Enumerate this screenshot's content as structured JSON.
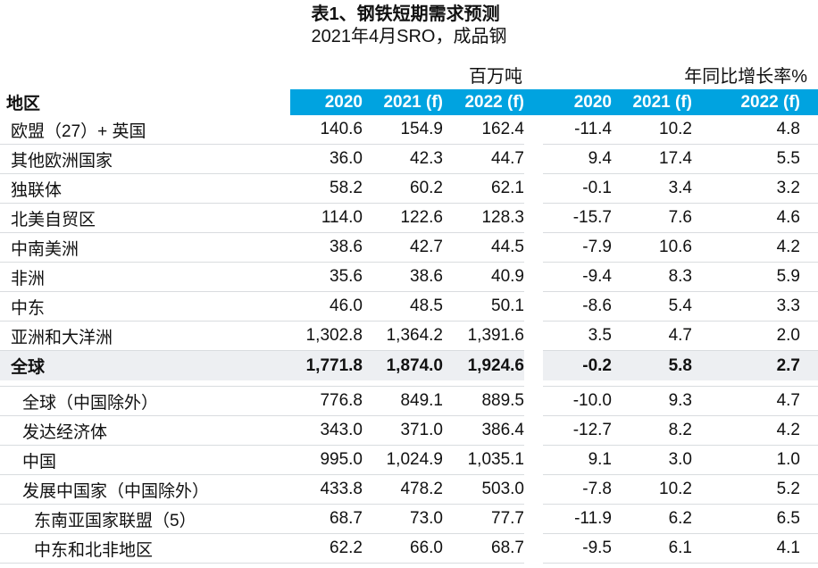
{
  "chart_data": {
    "type": "table",
    "title": "表1、钢铁短期需求预测",
    "subtitle": "2021年4月SRO，成品钢",
    "region_header": "地区",
    "unit_group_labels": [
      "百万吨",
      "年同比增长率%"
    ],
    "column_headers": [
      "2020",
      "2021 (f)",
      "2022 (f)",
      "2020",
      "2021 (f)",
      "2022 (f)"
    ],
    "rows": [
      {
        "region": "欧盟（27）+ 英国",
        "indent": 0,
        "bold": false,
        "highlight": false,
        "spacer_after": false,
        "million_tonnes": [
          "140.6",
          "154.9",
          "162.4"
        ],
        "yoy_growth_pct": [
          "-11.4",
          "10.2",
          "4.8"
        ]
      },
      {
        "region": "其他欧洲国家",
        "indent": 0,
        "bold": false,
        "highlight": false,
        "spacer_after": false,
        "million_tonnes": [
          "36.0",
          "42.3",
          "44.7"
        ],
        "yoy_growth_pct": [
          "9.4",
          "17.4",
          "5.5"
        ]
      },
      {
        "region": "独联体",
        "indent": 0,
        "bold": false,
        "highlight": false,
        "spacer_after": false,
        "million_tonnes": [
          "58.2",
          "60.2",
          "62.1"
        ],
        "yoy_growth_pct": [
          "-0.1",
          "3.4",
          "3.2"
        ]
      },
      {
        "region": "北美自贸区",
        "indent": 0,
        "bold": false,
        "highlight": false,
        "spacer_after": false,
        "million_tonnes": [
          "114.0",
          "122.6",
          "128.3"
        ],
        "yoy_growth_pct": [
          "-15.7",
          "7.6",
          "4.6"
        ]
      },
      {
        "region": "中南美洲",
        "indent": 0,
        "bold": false,
        "highlight": false,
        "spacer_after": false,
        "million_tonnes": [
          "38.6",
          "42.7",
          "44.5"
        ],
        "yoy_growth_pct": [
          "-7.9",
          "10.6",
          "4.2"
        ]
      },
      {
        "region": "非洲",
        "indent": 0,
        "bold": false,
        "highlight": false,
        "spacer_after": false,
        "million_tonnes": [
          "35.6",
          "38.6",
          "40.9"
        ],
        "yoy_growth_pct": [
          "-9.4",
          "8.3",
          "5.9"
        ]
      },
      {
        "region": "中东",
        "indent": 0,
        "bold": false,
        "highlight": false,
        "spacer_after": false,
        "million_tonnes": [
          "46.0",
          "48.5",
          "50.1"
        ],
        "yoy_growth_pct": [
          "-8.6",
          "5.4",
          "3.3"
        ]
      },
      {
        "region": "亚洲和大洋洲",
        "indent": 0,
        "bold": false,
        "highlight": false,
        "spacer_after": false,
        "million_tonnes": [
          "1,302.8",
          "1,364.2",
          "1,391.6"
        ],
        "yoy_growth_pct": [
          "3.5",
          "4.7",
          "2.0"
        ]
      },
      {
        "region": "全球",
        "indent": 0,
        "bold": true,
        "highlight": true,
        "spacer_after": true,
        "million_tonnes": [
          "1,771.8",
          "1,874.0",
          "1,924.6"
        ],
        "yoy_growth_pct": [
          "-0.2",
          "5.8",
          "2.7"
        ]
      },
      {
        "region": "全球（中国除外）",
        "indent": 1,
        "bold": false,
        "highlight": false,
        "spacer_after": false,
        "million_tonnes": [
          "776.8",
          "849.1",
          "889.5"
        ],
        "yoy_growth_pct": [
          "-10.0",
          "9.3",
          "4.7"
        ]
      },
      {
        "region": "发达经济体",
        "indent": 1,
        "bold": false,
        "highlight": false,
        "spacer_after": false,
        "million_tonnes": [
          "343.0",
          "371.0",
          "386.4"
        ],
        "yoy_growth_pct": [
          "-12.7",
          "8.2",
          "4.2"
        ]
      },
      {
        "region": "中国",
        "indent": 1,
        "bold": false,
        "highlight": false,
        "spacer_after": false,
        "million_tonnes": [
          "995.0",
          "1,024.9",
          "1,035.1"
        ],
        "yoy_growth_pct": [
          "9.1",
          "3.0",
          "1.0"
        ]
      },
      {
        "region": "发展中国家（中国除外）",
        "indent": 1,
        "bold": false,
        "highlight": false,
        "spacer_after": false,
        "million_tonnes": [
          "433.8",
          "478.2",
          "503.0"
        ],
        "yoy_growth_pct": [
          "-7.8",
          "10.2",
          "5.2"
        ]
      },
      {
        "region": "东南亚国家联盟（5）",
        "indent": 2,
        "bold": false,
        "highlight": false,
        "spacer_after": false,
        "million_tonnes": [
          "68.7",
          "73.0",
          "77.7"
        ],
        "yoy_growth_pct": [
          "-11.9",
          "6.2",
          "6.5"
        ]
      },
      {
        "region": "中东和北非地区",
        "indent": 2,
        "bold": false,
        "highlight": false,
        "spacer_after": false,
        "million_tonnes": [
          "62.2",
          "66.0",
          "68.7"
        ],
        "yoy_growth_pct": [
          "-9.5",
          "6.1",
          "4.1"
        ]
      }
    ]
  },
  "colors": {
    "header_bg": "#00a3e0",
    "header_text": "#ffffff",
    "highlight_row_bg": "#edeff2",
    "row_divider": "#d9dcdf",
    "text": "#111111"
  }
}
